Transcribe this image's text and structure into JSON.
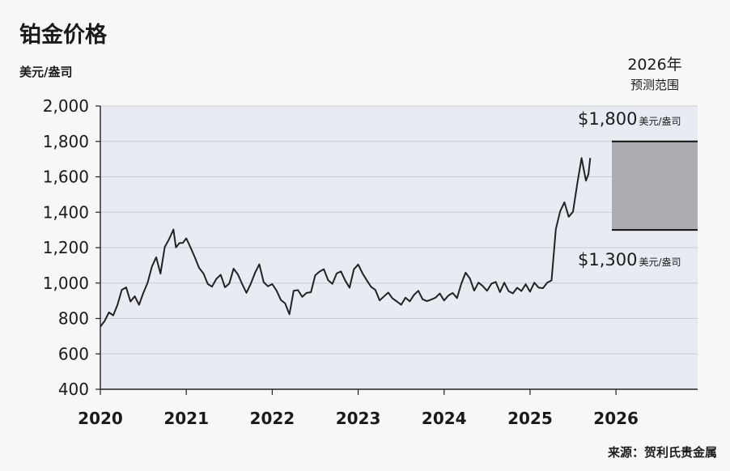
{
  "chart_data": {
    "type": "line",
    "title": "铂金价格",
    "ylabel": "美元/盎司",
    "xlabel": "",
    "source": "来源：贺利氏贵金属",
    "ylim": [
      400,
      2000
    ],
    "xlim": [
      2020,
      2026.95
    ],
    "y_ticks": [
      400,
      600,
      800,
      1000,
      1200,
      1400,
      1600,
      1800,
      2000
    ],
    "y_tick_labels": [
      "400",
      "600",
      "800",
      "1,000",
      "1,200",
      "1,400",
      "1,600",
      "1,800",
      "2,000"
    ],
    "x_ticks": [
      2020,
      2021,
      2022,
      2023,
      2024,
      2025,
      2026
    ],
    "x_tick_labels": [
      "2020",
      "2021",
      "2022",
      "2023",
      "2024",
      "2025",
      "2026"
    ],
    "grid": true,
    "colors": {
      "plot_bg": "#e9ebf2",
      "line": "#222222",
      "range_fill": "#adadb1",
      "page_bg": "#f7f7f7"
    },
    "series": [
      {
        "name": "铂金价格",
        "x": [
          2020.0,
          2020.05,
          2020.1,
          2020.15,
          2020.2,
          2020.25,
          2020.3,
          2020.35,
          2020.4,
          2020.45,
          2020.5,
          2020.55,
          2020.6,
          2020.65,
          2020.7,
          2020.75,
          2020.8,
          2020.85,
          2020.88,
          2020.92,
          2020.96,
          2021.0,
          2021.05,
          2021.1,
          2021.15,
          2021.2,
          2021.25,
          2021.3,
          2021.35,
          2021.4,
          2021.45,
          2021.5,
          2021.55,
          2021.6,
          2021.65,
          2021.7,
          2021.75,
          2021.8,
          2021.85,
          2021.9,
          2021.95,
          2022.0,
          2022.05,
          2022.1,
          2022.15,
          2022.2,
          2022.25,
          2022.3,
          2022.35,
          2022.4,
          2022.45,
          2022.5,
          2022.55,
          2022.6,
          2022.65,
          2022.7,
          2022.75,
          2022.8,
          2022.85,
          2022.9,
          2022.95,
          2023.0,
          2023.05,
          2023.1,
          2023.15,
          2023.2,
          2023.25,
          2023.3,
          2023.35,
          2023.4,
          2023.45,
          2023.5,
          2023.55,
          2023.6,
          2023.65,
          2023.7,
          2023.75,
          2023.8,
          2023.85,
          2023.9,
          2023.95,
          2024.0,
          2024.05,
          2024.1,
          2024.15,
          2024.2,
          2024.25,
          2024.3,
          2024.35,
          2024.4,
          2024.45,
          2024.5,
          2024.55,
          2024.6,
          2024.65,
          2024.7,
          2024.75,
          2024.8,
          2024.85,
          2024.9,
          2024.95,
          2025.0,
          2025.05,
          2025.1,
          2025.15,
          2025.2,
          2025.25,
          2025.3,
          2025.35,
          2025.4,
          2025.45,
          2025.5,
          2025.55,
          2025.6,
          2025.65,
          2025.68,
          2025.7
        ],
        "values": [
          760,
          780,
          840,
          820,
          880,
          960,
          980,
          900,
          930,
          880,
          950,
          1000,
          1100,
          1150,
          1050,
          1200,
          1250,
          1300,
          1200,
          1230,
          1220,
          1250,
          1200,
          1150,
          1080,
          1050,
          1000,
          980,
          1020,
          1050,
          980,
          1000,
          1080,
          1050,
          1000,
          950,
          990,
          1060,
          1100,
          1000,
          980,
          1000,
          960,
          900,
          880,
          820,
          950,
          960,
          920,
          940,
          950,
          1040,
          1060,
          1080,
          1020,
          1000,
          1050,
          1060,
          1020,
          980,
          1080,
          1100,
          1060,
          1020,
          980,
          960,
          900,
          920,
          940,
          910,
          900,
          880,
          920,
          900,
          940,
          960,
          910,
          900,
          910,
          920,
          940,
          900,
          930,
          950,
          920,
          1000,
          1060,
          1020,
          960,
          1000,
          990,
          960,
          990,
          1000,
          950,
          1000,
          960,
          940,
          970,
          960,
          990,
          950,
          1000,
          980,
          970,
          1000,
          1020,
          1300,
          1400,
          1450,
          1380,
          1400,
          1560,
          1700,
          1580,
          1620,
          1700
        ]
      }
    ],
    "forecast_range": {
      "title": "2026年",
      "subtitle": "预测范围",
      "high": 1800,
      "low": 1300,
      "high_label": "$1,800",
      "low_label": "$1,300",
      "unit": "美元/盎司"
    }
  }
}
